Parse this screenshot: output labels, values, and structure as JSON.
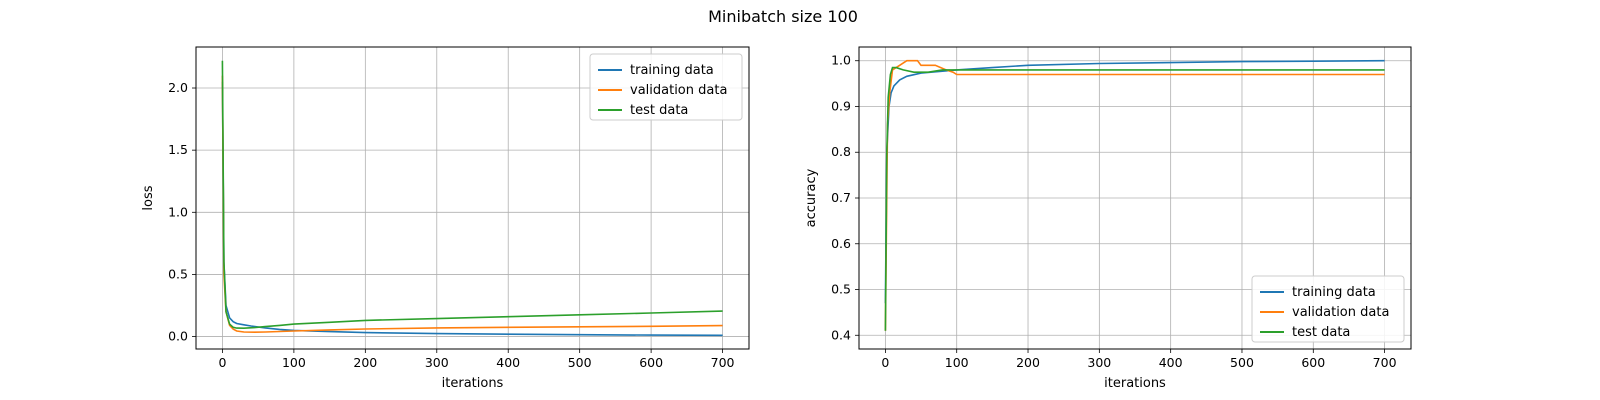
{
  "figure": {
    "suptitle": "Minibatch size 100"
  },
  "chart_data": [
    {
      "type": "line",
      "xlabel": "iterations",
      "ylabel": "loss",
      "xlim": [
        -37,
        737
      ],
      "ylim": [
        -0.1,
        2.33
      ],
      "xticks": [
        0,
        100,
        200,
        300,
        400,
        500,
        600,
        700
      ],
      "yticks": [
        0.0,
        0.5,
        1.0,
        1.5,
        2.0
      ],
      "ytick_labels": [
        "0.0",
        "0.5",
        "1.0",
        "1.5",
        "2.0"
      ],
      "grid": true,
      "legend_position": "top-right",
      "series": [
        {
          "name": "training data",
          "color": "#1f77b4",
          "x": [
            0,
            2,
            5,
            10,
            15,
            20,
            30,
            40,
            60,
            80,
            100,
            150,
            200,
            300,
            400,
            500,
            600,
            700
          ],
          "y": [
            2.05,
            0.6,
            0.25,
            0.15,
            0.12,
            0.105,
            0.095,
            0.085,
            0.07,
            0.058,
            0.05,
            0.04,
            0.032,
            0.024,
            0.019,
            0.015,
            0.012,
            0.01
          ]
        },
        {
          "name": "validation data",
          "color": "#ff7f0e",
          "x": [
            0,
            2,
            5,
            10,
            15,
            20,
            30,
            45,
            60,
            80,
            100,
            150,
            200,
            300,
            400,
            500,
            600,
            700
          ],
          "y": [
            2.1,
            0.5,
            0.2,
            0.09,
            0.06,
            0.045,
            0.037,
            0.035,
            0.037,
            0.041,
            0.045,
            0.054,
            0.061,
            0.07,
            0.075,
            0.079,
            0.083,
            0.088
          ]
        },
        {
          "name": "test data",
          "color": "#2ca02c",
          "x": [
            0,
            2,
            5,
            10,
            15,
            20,
            30,
            45,
            60,
            80,
            100,
            150,
            200,
            300,
            400,
            500,
            600,
            700
          ],
          "y": [
            2.22,
            0.6,
            0.2,
            0.1,
            0.075,
            0.068,
            0.067,
            0.072,
            0.08,
            0.09,
            0.1,
            0.115,
            0.13,
            0.145,
            0.16,
            0.175,
            0.19,
            0.205
          ]
        }
      ]
    },
    {
      "type": "line",
      "xlabel": "iterations",
      "ylabel": "accuracy",
      "xlim": [
        -37,
        737
      ],
      "ylim": [
        0.37,
        1.03
      ],
      "xticks": [
        0,
        100,
        200,
        300,
        400,
        500,
        600,
        700
      ],
      "yticks": [
        0.4,
        0.5,
        0.6,
        0.7,
        0.8,
        0.9,
        1.0
      ],
      "ytick_labels": [
        "0.4",
        "0.5",
        "0.6",
        "0.7",
        "0.8",
        "0.9",
        "1.0"
      ],
      "grid": true,
      "legend_position": "bottom-right",
      "series": [
        {
          "name": "training data",
          "color": "#1f77b4",
          "x": [
            0,
            2,
            5,
            8,
            12,
            20,
            30,
            50,
            100,
            150,
            200,
            300,
            400,
            500,
            600,
            700
          ],
          "y": [
            0.47,
            0.8,
            0.9,
            0.93,
            0.945,
            0.958,
            0.966,
            0.973,
            0.98,
            0.985,
            0.99,
            0.994,
            0.996,
            0.998,
            0.999,
            1.0
          ]
        },
        {
          "name": "validation data",
          "color": "#ff7f0e",
          "x": [
            0,
            3,
            6,
            10,
            20,
            30,
            45,
            50,
            70,
            85,
            95,
            100,
            700
          ],
          "y": [
            0.41,
            0.86,
            0.93,
            0.98,
            0.99,
            1.0,
            1.0,
            0.99,
            0.99,
            0.98,
            0.975,
            0.97,
            0.97
          ]
        },
        {
          "name": "test data",
          "color": "#2ca02c",
          "x": [
            0,
            2,
            4,
            7,
            10,
            15,
            25,
            40,
            60,
            80,
            100,
            150,
            200,
            700
          ],
          "y": [
            0.41,
            0.8,
            0.92,
            0.97,
            0.985,
            0.985,
            0.98,
            0.975,
            0.975,
            0.98,
            0.98,
            0.98,
            0.98,
            0.98
          ]
        }
      ]
    }
  ]
}
